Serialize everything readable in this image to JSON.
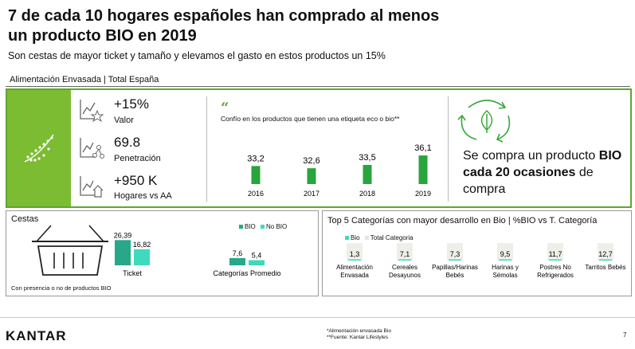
{
  "header": {
    "title": "7 de cada 10 hogares españoles han comprado al menos un producto BIO en 2019",
    "subtitle": "Son cestas de mayor ticket y tamaño y elevamos el gasto en estos productos un 15%",
    "section_label": "Alimentación Envasada | Total España"
  },
  "colors": {
    "brand_green": "#7cbc32",
    "bar_green": "#28a53c",
    "teal_bio": "#26a889",
    "teal_nobio": "#3fd9bc",
    "grey_total": "#efefe9"
  },
  "kpis": [
    {
      "value": "+15%",
      "label": "Valor",
      "icon": "chart-star-icon"
    },
    {
      "value": "69.8",
      "label": "Penetración",
      "icon": "chart-network-icon"
    },
    {
      "value": "+950 K",
      "label": "Hogares vs AA",
      "icon": "chart-house-icon"
    }
  ],
  "quote": {
    "mark": "“",
    "text": "Confío en los productos que tienen una etiqueta eco o bio**"
  },
  "bio_statement": {
    "prefix": "Se compra un producto ",
    "bold1": "BIO cada 20 ocasiones",
    "suffix": " de compra"
  },
  "cestas": {
    "title": "Cestas",
    "footnote": "Con presencia o no de productos BIO",
    "legend": [
      "BIO",
      "No BIO"
    ]
  },
  "top5": {
    "title": "Top 5 Categorías con mayor desarrollo en Bio | %BIO vs T. Categoría",
    "legend": [
      "Bio",
      "Total Categoria"
    ]
  },
  "footer": {
    "brand": "KANTAR",
    "note1": "*Alimentación envasada Bio",
    "note2": "**Fuente: Kantar Lifestyles",
    "page": "7"
  },
  "chart_data": [
    {
      "type": "bar",
      "categories": [
        "2016",
        "2017",
        "2018",
        "2019"
      ],
      "values": [
        33.2,
        32.6,
        33.5,
        36.1
      ],
      "labels": [
        "33,2",
        "32,6",
        "33,5",
        "36,1"
      ],
      "ylim": [
        30,
        37
      ]
    },
    {
      "type": "bar",
      "categories": [
        "Ticket",
        "Categorías Promedio"
      ],
      "series": [
        {
          "name": "BIO",
          "values": [
            26.39,
            7.6
          ],
          "labels": [
            "26,39",
            "7,6"
          ]
        },
        {
          "name": "No BIO",
          "values": [
            16.82,
            5.4
          ],
          "labels": [
            "16,82",
            "5,4"
          ]
        }
      ]
    },
    {
      "type": "bar",
      "categories": [
        "Alimentación Envasada",
        "Cereales Desayunos",
        "Papillas/Harinas Bebés",
        "Harinas y Sémolas",
        "Postres No Refrigerados",
        "Tarritos Bebés"
      ],
      "values": [
        1.3,
        7.1,
        7.3,
        9.5,
        11.7,
        12.7
      ],
      "labels": [
        "1,3",
        "7,1",
        "7,3",
        "9,5",
        "11,7",
        "12,7"
      ],
      "ylim": [
        0,
        100
      ]
    }
  ]
}
